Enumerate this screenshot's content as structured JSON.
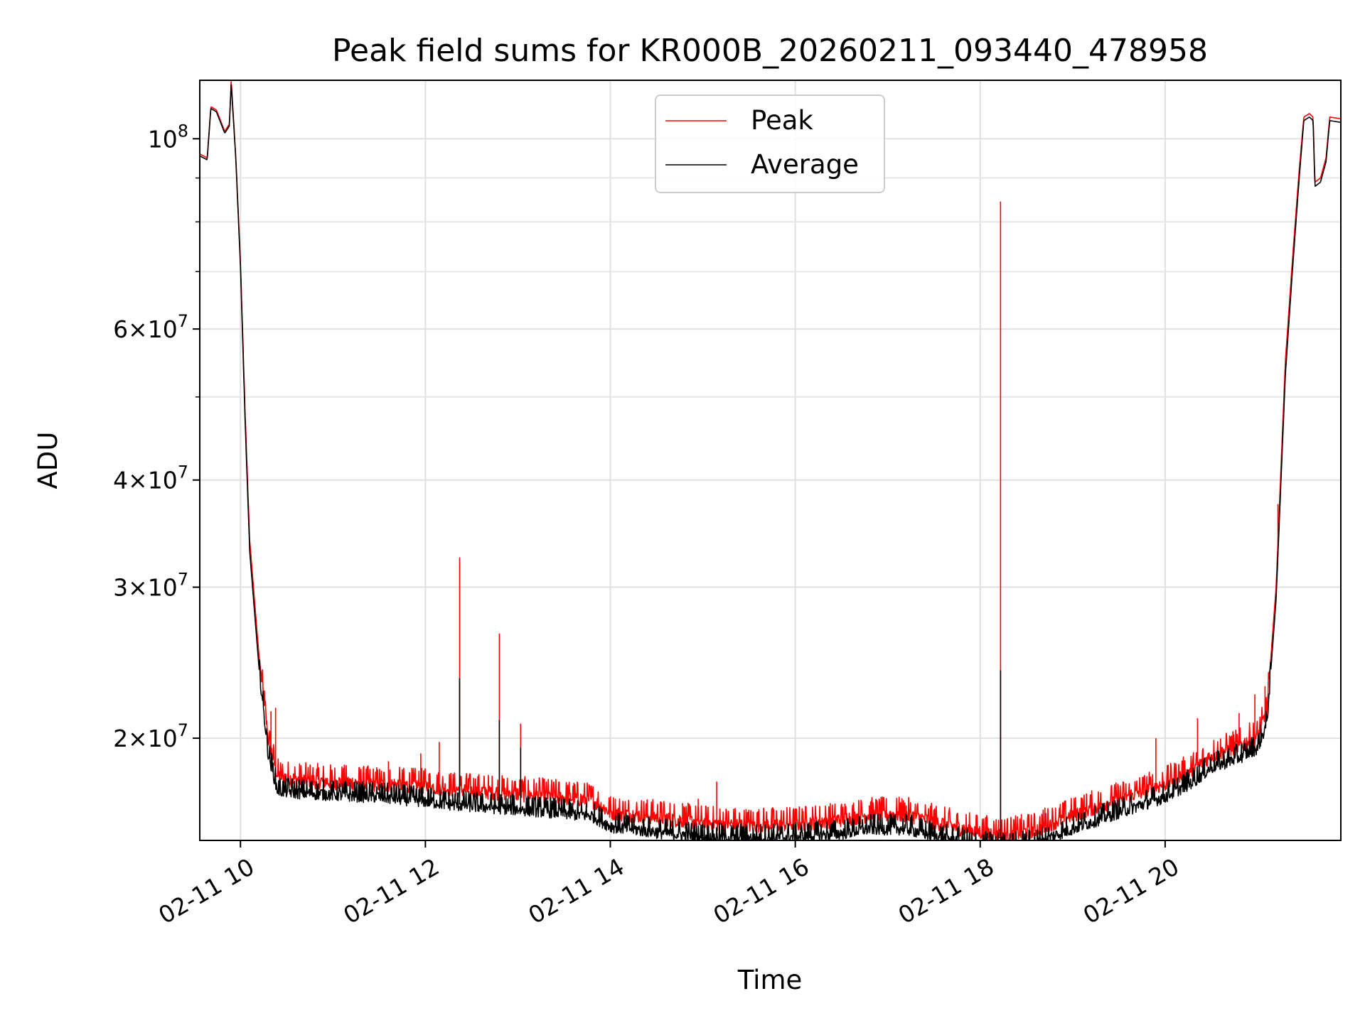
{
  "chart_data": {
    "type": "line",
    "title": "Peak field sums for KR000B_20260211_093440_478958",
    "xlabel": "Time",
    "ylabel": "ADU",
    "yscale": "log",
    "ylim": [
      15200000,
      117000000
    ],
    "xlim_hours": [
      9.56,
      21.9
    ],
    "grid": true,
    "legend_position": "top-center",
    "x_ticks": [
      {
        "hour": 10,
        "label": "02-11 10"
      },
      {
        "hour": 12,
        "label": "02-11 12"
      },
      {
        "hour": 14,
        "label": "02-11 14"
      },
      {
        "hour": 16,
        "label": "02-11 16"
      },
      {
        "hour": 18,
        "label": "02-11 18"
      },
      {
        "hour": 20,
        "label": "02-11 20"
      }
    ],
    "y_ticks": [
      {
        "value": 100000000,
        "base": "10",
        "exp": "8",
        "mantissa": ""
      },
      {
        "value": 60000000,
        "base": "10",
        "exp": "7",
        "mantissa": "6×"
      },
      {
        "value": 40000000,
        "base": "10",
        "exp": "7",
        "mantissa": "4×"
      },
      {
        "value": 30000000,
        "base": "10",
        "exp": "7",
        "mantissa": "3×"
      },
      {
        "value": 20000000,
        "base": "10",
        "exp": "7",
        "mantissa": "2×"
      }
    ],
    "y_minor_grid": [
      50000000,
      70000000,
      80000000,
      90000000
    ],
    "series": [
      {
        "name": "Peak",
        "color": "#ff0000",
        "points": [
          [
            9.56,
            96000000
          ],
          [
            9.64,
            95000000
          ],
          [
            9.68,
            109000000
          ],
          [
            9.74,
            108000000
          ],
          [
            9.83,
            102000000
          ],
          [
            9.88,
            104000000
          ],
          [
            9.9,
            117000000
          ],
          [
            9.95,
            95000000
          ],
          [
            10.0,
            72000000
          ],
          [
            10.05,
            48000000
          ],
          [
            10.1,
            34000000
          ],
          [
            10.2,
            25000000
          ],
          [
            10.3,
            20000000
          ],
          [
            10.4,
            18100000
          ],
          [
            10.6,
            17900000
          ],
          [
            11.0,
            17800000
          ],
          [
            11.5,
            17700000
          ],
          [
            12.0,
            17600000
          ],
          [
            12.3,
            17450000
          ],
          [
            12.8,
            17300000
          ],
          [
            13.3,
            17150000
          ],
          [
            13.8,
            16950000
          ],
          [
            14.0,
            16400000
          ],
          [
            14.5,
            16200000
          ],
          [
            15.0,
            15950000
          ],
          [
            15.5,
            15850000
          ],
          [
            16.0,
            15900000
          ],
          [
            16.5,
            16100000
          ],
          [
            16.8,
            16300000
          ],
          [
            17.2,
            16300000
          ],
          [
            17.5,
            16000000
          ],
          [
            17.8,
            15700000
          ],
          [
            18.0,
            15550000
          ],
          [
            18.3,
            15450000
          ],
          [
            18.6,
            15650000
          ],
          [
            19.0,
            16300000
          ],
          [
            19.5,
            17000000
          ],
          [
            20.0,
            17700000
          ],
          [
            20.3,
            18400000
          ],
          [
            20.5,
            19100000
          ],
          [
            20.8,
            19600000
          ],
          [
            21.0,
            20100000
          ],
          [
            21.1,
            21500000
          ],
          [
            21.2,
            30000000
          ],
          [
            21.3,
            55000000
          ],
          [
            21.38,
            73000000
          ],
          [
            21.45,
            92000000
          ],
          [
            21.5,
            106000000
          ],
          [
            21.56,
            107000000
          ],
          [
            21.6,
            106000000
          ],
          [
            21.62,
            89000000
          ],
          [
            21.68,
            90000000
          ],
          [
            21.74,
            95000000
          ],
          [
            21.78,
            106000000
          ],
          [
            21.9,
            105500000
          ]
        ],
        "spikes": [
          [
            10.33,
            21500000
          ],
          [
            10.38,
            21700000
          ],
          [
            11.6,
            18800000
          ],
          [
            11.95,
            19200000
          ],
          [
            12.15,
            19800000
          ],
          [
            12.37,
            32500000
          ],
          [
            12.8,
            26500000
          ],
          [
            13.03,
            20800000
          ],
          [
            14.78,
            16800000
          ],
          [
            14.95,
            17000000
          ],
          [
            15.15,
            17800000
          ],
          [
            16.8,
            16700000
          ],
          [
            17.2,
            16700000
          ],
          [
            18.22,
            84500000
          ],
          [
            18.7,
            16600000
          ],
          [
            19.9,
            20000000
          ],
          [
            20.35,
            21100000
          ],
          [
            20.8,
            21400000
          ],
          [
            20.97,
            22500000
          ],
          [
            21.08,
            23000000
          ],
          [
            21.22,
            37500000
          ],
          [
            21.31,
            54500000
          ]
        ]
      },
      {
        "name": "Average",
        "color": "#000000",
        "points": [
          [
            9.56,
            95500000
          ],
          [
            9.64,
            94500000
          ],
          [
            9.68,
            108500000
          ],
          [
            9.74,
            107500000
          ],
          [
            9.83,
            101500000
          ],
          [
            9.88,
            103500000
          ],
          [
            9.9,
            116000000
          ],
          [
            9.95,
            94500000
          ],
          [
            10.0,
            71000000
          ],
          [
            10.05,
            47000000
          ],
          [
            10.1,
            33000000
          ],
          [
            10.2,
            24200000
          ],
          [
            10.3,
            19200000
          ],
          [
            10.4,
            17400000
          ],
          [
            10.6,
            17300000
          ],
          [
            11.0,
            17200000
          ],
          [
            11.5,
            17100000
          ],
          [
            12.0,
            16900000
          ],
          [
            12.3,
            16750000
          ],
          [
            12.8,
            16600000
          ],
          [
            13.3,
            16450000
          ],
          [
            13.8,
            16250000
          ],
          [
            14.0,
            15800000
          ],
          [
            14.5,
            15550000
          ],
          [
            15.0,
            15350000
          ],
          [
            15.5,
            15300000
          ],
          [
            16.0,
            15350000
          ],
          [
            16.5,
            15500000
          ],
          [
            16.8,
            15700000
          ],
          [
            17.2,
            15700000
          ],
          [
            17.5,
            15400000
          ],
          [
            17.8,
            15150000
          ],
          [
            18.0,
            15000000
          ],
          [
            18.3,
            14950000
          ],
          [
            18.6,
            15100000
          ],
          [
            19.0,
            15700000
          ],
          [
            19.5,
            16400000
          ],
          [
            20.0,
            17100000
          ],
          [
            20.3,
            17800000
          ],
          [
            20.5,
            18500000
          ],
          [
            20.8,
            19000000
          ],
          [
            21.0,
            19500000
          ],
          [
            21.1,
            20800000
          ],
          [
            21.2,
            29000000
          ],
          [
            21.3,
            53000000
          ],
          [
            21.38,
            71000000
          ],
          [
            21.45,
            90000000
          ],
          [
            21.5,
            105000000
          ],
          [
            21.56,
            106000000
          ],
          [
            21.6,
            105000000
          ],
          [
            21.62,
            88000000
          ],
          [
            21.68,
            89000000
          ],
          [
            21.74,
            94000000
          ],
          [
            21.78,
            105000000
          ],
          [
            21.9,
            104500000
          ]
        ],
        "spikes": [
          [
            12.37,
            23500000
          ],
          [
            12.8,
            21000000
          ],
          [
            13.03,
            19500000
          ],
          [
            18.22,
            24000000
          ],
          [
            21.22,
            33000000
          ]
        ]
      }
    ]
  }
}
